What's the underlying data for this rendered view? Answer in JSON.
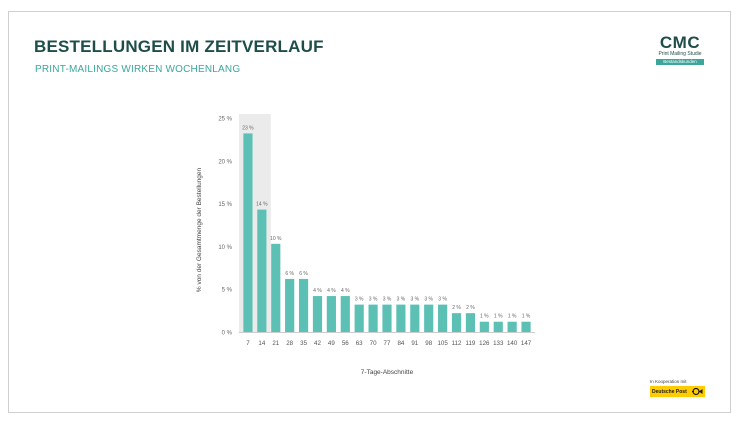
{
  "header": {
    "title": "BESTELLUNGEN IM ZEITVERLAUF",
    "subtitle": "PRINT-MAILINGS WIRKEN WOCHENLANG"
  },
  "logo": {
    "main": "CMC",
    "sub": "Print Mailing Studie",
    "badge": "Bestandskunden"
  },
  "partner": {
    "text": "In Kooperation mit",
    "name": "Deutsche Post"
  },
  "colors": {
    "bar": "#5cc0b5",
    "title": "#1f4e4a",
    "accent": "#3aa79c",
    "highlight": "#ebebeb"
  },
  "chart_data": {
    "type": "bar",
    "categories": [
      "7",
      "14",
      "21",
      "28",
      "35",
      "42",
      "49",
      "56",
      "63",
      "70",
      "77",
      "84",
      "91",
      "98",
      "105",
      "112",
      "119",
      "126",
      "133",
      "140",
      "147"
    ],
    "values": [
      23,
      14,
      10,
      6,
      6,
      4,
      4,
      4,
      3,
      3,
      3,
      3,
      3,
      3,
      3,
      2,
      2,
      1,
      1,
      1,
      1
    ],
    "bar_heights": [
      23.2,
      14.3,
      10.3,
      6.2,
      6.2,
      4.2,
      4.2,
      4.2,
      3.2,
      3.2,
      3.2,
      3.2,
      3.2,
      3.2,
      3.2,
      2.2,
      2.2,
      1.2,
      1.2,
      1.2,
      1.2
    ],
    "labels": [
      "23 %",
      "14 %",
      "10 %",
      "6 %",
      "6 %",
      "4 %",
      "4 %",
      "4 %",
      "3 %",
      "3 %",
      "3 %",
      "3 %",
      "3 %",
      "3 %",
      "3 %",
      "2 %",
      "2 %",
      "1 %",
      "1 %",
      "1 %",
      "1 %"
    ],
    "yticks": [
      "0 %",
      "5 %",
      "10 %",
      "15 %",
      "20 %",
      "25 %"
    ],
    "ylim": [
      0,
      25
    ],
    "xlabel": "7-Tage-Abschnitte",
    "ylabel": "% von der Gesamtmenge der Bestellungen",
    "highlight_category": "7"
  }
}
